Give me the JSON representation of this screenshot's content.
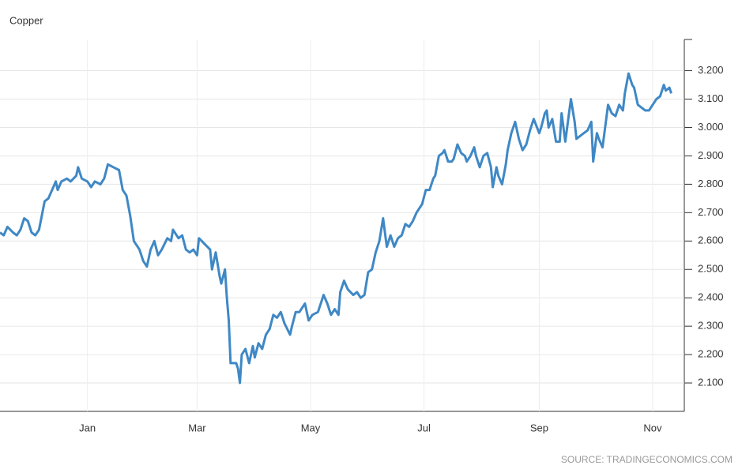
{
  "chart_data": {
    "type": "line",
    "title": "Copper",
    "source": "SOURCE: TRADINGECONOMICS.COM",
    "x": [
      -47,
      -45,
      -43,
      -40,
      -38,
      -36,
      -34,
      -32,
      -30,
      -28,
      -26,
      -23,
      -21,
      -19,
      -17,
      -16,
      -14,
      -11,
      -9,
      -6,
      -5,
      -3,
      0,
      2,
      4,
      7,
      9,
      11,
      14,
      17,
      19,
      21,
      23,
      25,
      28,
      30,
      32,
      34,
      36,
      38,
      40,
      43,
      45,
      46,
      49,
      51,
      53,
      55,
      57,
      59,
      60,
      63,
      66,
      67,
      69,
      71,
      72,
      74,
      75,
      76,
      77,
      80,
      81,
      82,
      83,
      85,
      87,
      89,
      90,
      92,
      94,
      96,
      98,
      100,
      102,
      104,
      106,
      109,
      110,
      112,
      114,
      117,
      119,
      121,
      124,
      127,
      129,
      131,
      133,
      135,
      136,
      138,
      140,
      143,
      145,
      147,
      149,
      151,
      153,
      155,
      157,
      159,
      161,
      163,
      165,
      167,
      169,
      171,
      173,
      175,
      177,
      180,
      182,
      184,
      186,
      187,
      189,
      191,
      192,
      194,
      196,
      197,
      199,
      201,
      203,
      204,
      206,
      208,
      209,
      211,
      213,
      215,
      217,
      218,
      220,
      221,
      223,
      225,
      226,
      228,
      230,
      232,
      234,
      236,
      238,
      240,
      243,
      244,
      246,
      247,
      248,
      250,
      252,
      254,
      255,
      257,
      259,
      260,
      262,
      263,
      265,
      267,
      269,
      271,
      272,
      274,
      275,
      277,
      279,
      280,
      282,
      284,
      286,
      288,
      289,
      291,
      293,
      294,
      296,
      298,
      300,
      302,
      304,
      306,
      308,
      310,
      311,
      313,
      314
    ],
    "series": [
      {
        "name": "Copper",
        "color": "#3f88c5",
        "values": [
          2.63,
          2.62,
          2.65,
          2.63,
          2.62,
          2.64,
          2.68,
          2.67,
          2.63,
          2.62,
          2.64,
          2.74,
          2.75,
          2.78,
          2.81,
          2.78,
          2.81,
          2.82,
          2.81,
          2.83,
          2.86,
          2.82,
          2.81,
          2.79,
          2.81,
          2.8,
          2.82,
          2.87,
          2.86,
          2.85,
          2.78,
          2.76,
          2.69,
          2.6,
          2.57,
          2.53,
          2.51,
          2.57,
          2.6,
          2.55,
          2.57,
          2.61,
          2.6,
          2.64,
          2.61,
          2.62,
          2.57,
          2.56,
          2.57,
          2.55,
          2.61,
          2.59,
          2.57,
          2.5,
          2.56,
          2.48,
          2.45,
          2.5,
          2.4,
          2.32,
          2.17,
          2.17,
          2.15,
          2.1,
          2.2,
          2.22,
          2.17,
          2.23,
          2.19,
          2.24,
          2.22,
          2.27,
          2.29,
          2.34,
          2.33,
          2.35,
          2.31,
          2.27,
          2.3,
          2.35,
          2.35,
          2.38,
          2.32,
          2.34,
          2.35,
          2.41,
          2.38,
          2.34,
          2.36,
          2.34,
          2.42,
          2.46,
          2.43,
          2.41,
          2.42,
          2.4,
          2.41,
          2.49,
          2.5,
          2.56,
          2.6,
          2.68,
          2.58,
          2.62,
          2.58,
          2.61,
          2.62,
          2.66,
          2.65,
          2.67,
          2.7,
          2.73,
          2.78,
          2.78,
          2.82,
          2.83,
          2.9,
          2.91,
          2.92,
          2.88,
          2.88,
          2.89,
          2.94,
          2.91,
          2.9,
          2.88,
          2.9,
          2.93,
          2.9,
          2.86,
          2.9,
          2.91,
          2.86,
          2.79,
          2.86,
          2.83,
          2.8,
          2.87,
          2.92,
          2.98,
          3.02,
          2.96,
          2.92,
          2.94,
          2.99,
          3.03,
          2.98,
          3.0,
          3.05,
          3.06,
          3.0,
          3.03,
          2.95,
          2.95,
          3.05,
          2.95,
          3.05,
          3.1,
          3.02,
          2.96,
          2.97,
          2.98,
          2.99,
          3.02,
          2.88,
          2.98,
          2.96,
          2.93,
          3.03,
          3.08,
          3.05,
          3.04,
          3.08,
          3.06,
          3.12,
          3.19,
          3.15,
          3.14,
          3.08,
          3.07,
          3.06,
          3.06,
          3.08,
          3.1,
          3.11,
          3.15,
          3.13,
          3.14,
          3.12
        ]
      }
    ],
    "xlim": [
      -47,
      321
    ],
    "xticks": [
      {
        "value": 0,
        "label": "Jan"
      },
      {
        "value": 59,
        "label": "Mar"
      },
      {
        "value": 120,
        "label": "May"
      },
      {
        "value": 181,
        "label": "Jul"
      },
      {
        "value": 243,
        "label": "Sep"
      },
      {
        "value": 304,
        "label": "Nov"
      }
    ],
    "ylim": [
      2.0,
      3.31
    ],
    "yticks": [
      {
        "value": 2.1,
        "label": "2.100"
      },
      {
        "value": 2.2,
        "label": "2.200"
      },
      {
        "value": 2.3,
        "label": "2.300"
      },
      {
        "value": 2.4,
        "label": "2.400"
      },
      {
        "value": 2.5,
        "label": "2.500"
      },
      {
        "value": 2.6,
        "label": "2.600"
      },
      {
        "value": 2.7,
        "label": "2.700"
      },
      {
        "value": 2.8,
        "label": "2.800"
      },
      {
        "value": 2.9,
        "label": "2.900"
      },
      {
        "value": 3.0,
        "label": "3.000"
      },
      {
        "value": 3.1,
        "label": "3.100"
      },
      {
        "value": 3.2,
        "label": "3.200"
      }
    ],
    "grid": true
  }
}
